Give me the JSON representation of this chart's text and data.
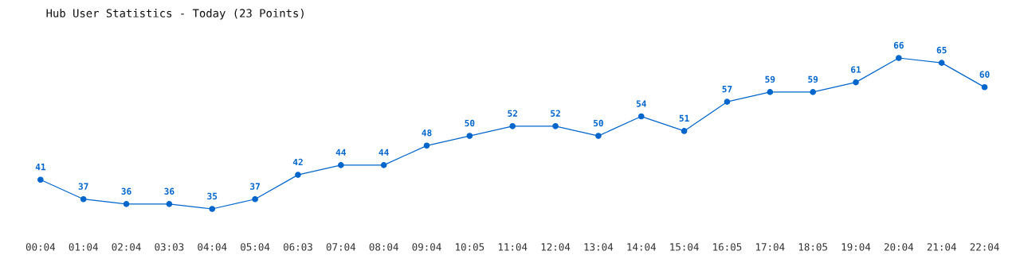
{
  "chart_data": {
    "type": "line",
    "title": "Hub User Statistics - Today (23 Points)",
    "categories": [
      "00:04",
      "01:04",
      "02:04",
      "03:03",
      "04:04",
      "05:04",
      "06:03",
      "07:04",
      "08:04",
      "09:04",
      "10:05",
      "11:04",
      "12:04",
      "13:04",
      "14:04",
      "15:04",
      "16:05",
      "17:04",
      "18:05",
      "19:04",
      "20:04",
      "21:04",
      "22:04"
    ],
    "series": [
      {
        "color": "#0066cc",
        "values": [
          41,
          37,
          36,
          36,
          35,
          37,
          42,
          44,
          44,
          48,
          50,
          52,
          52,
          50,
          54,
          51,
          57,
          59,
          59,
          61,
          66,
          65,
          60
        ]
      }
    ],
    "tick_labels": "x",
    "data_labels": true,
    "marker": "circle",
    "line_style": "solid",
    "grid": false,
    "legend": false
  }
}
